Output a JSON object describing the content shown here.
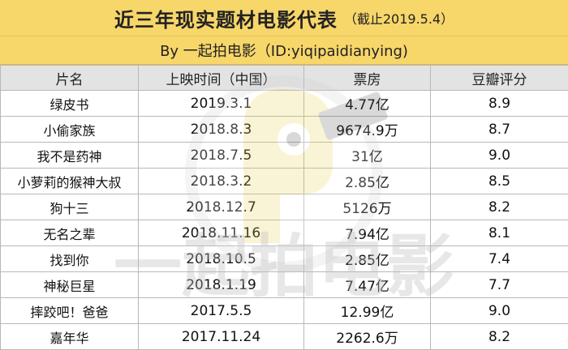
{
  "title": {
    "main": "近三年现实题材电影代表",
    "sub": "（截止2019.5.4）",
    "by": "By 一起拍电影（ID:yiqipaidianying)"
  },
  "table": {
    "headers": [
      "片名",
      "上映时间（中国）",
      "票房",
      "豆瓣评分"
    ],
    "rows": [
      {
        "name": "绿皮书",
        "date": "2019.3.1",
        "box": "4.77亿",
        "score": "8.9"
      },
      {
        "name": "小偷家族",
        "date": "2018.8.3",
        "box": "9674.9万",
        "score": "8.7"
      },
      {
        "name": "我不是药神",
        "date": "2018.7.5",
        "box": "31亿",
        "score": "9.0"
      },
      {
        "name": "小萝莉的猴神大叔",
        "date": "2018.3.2",
        "box": "2.85亿",
        "score": "8.5"
      },
      {
        "name": "狗十三",
        "date": "2018.12.7",
        "box": "5126万",
        "score": "8.2"
      },
      {
        "name": "无名之辈",
        "date": "2018.11.16",
        "box": "7.94亿",
        "score": "8.1"
      },
      {
        "name": "找到你",
        "date": "2018.10.5",
        "box": "2.85亿",
        "score": "7.4"
      },
      {
        "name": "神秘巨星",
        "date": "2018.1.19",
        "box": "7.47亿",
        "score": "7.7"
      },
      {
        "name": "摔跤吧！爸爸",
        "date": "2017.5.5",
        "box": "12.99亿",
        "score": "9.0"
      },
      {
        "name": "嘉年华",
        "date": "2017.11.24",
        "box": "2262.6万",
        "score": "8.2"
      }
    ]
  },
  "watermark": {
    "text": "一起拍电影"
  }
}
